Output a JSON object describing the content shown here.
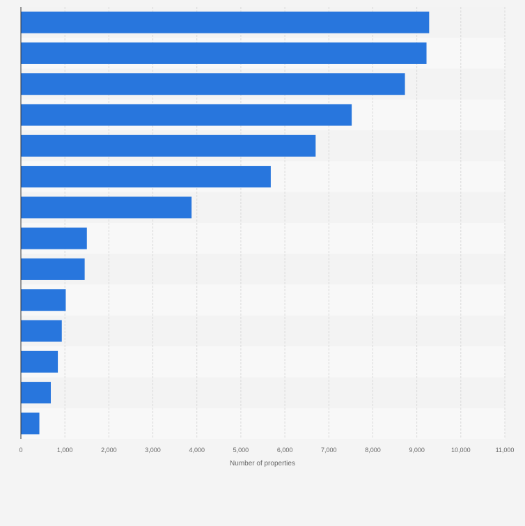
{
  "chart_data": {
    "type": "bar",
    "orientation": "horizontal",
    "categories": [
      "",
      "",
      "",
      "",
      "",
      "",
      "",
      "",
      "",
      "",
      "",
      "",
      "",
      ""
    ],
    "values": [
      9280,
      9220,
      8730,
      7520,
      6700,
      5680,
      3880,
      1500,
      1450,
      1020,
      930,
      840,
      680,
      420
    ],
    "title": "",
    "xlabel": "Number of properties",
    "ylabel": "",
    "xlim": [
      0,
      11000
    ],
    "xticks": [
      0,
      1000,
      2000,
      3000,
      4000,
      5000,
      6000,
      7000,
      8000,
      9000,
      10000,
      11000
    ],
    "xtick_labels": [
      "0",
      "1,000",
      "2,000",
      "3,000",
      "4,000",
      "5,000",
      "6,000",
      "7,000",
      "8,000",
      "9,000",
      "10,000",
      "11,000"
    ],
    "grid": true,
    "bar_color": "#2876dd",
    "band_colors": [
      "#f3f3f3",
      "#f8f8f8"
    ],
    "grid_color": "#d9d9d9",
    "axis_color": "#333333",
    "label_color": "#666666"
  }
}
